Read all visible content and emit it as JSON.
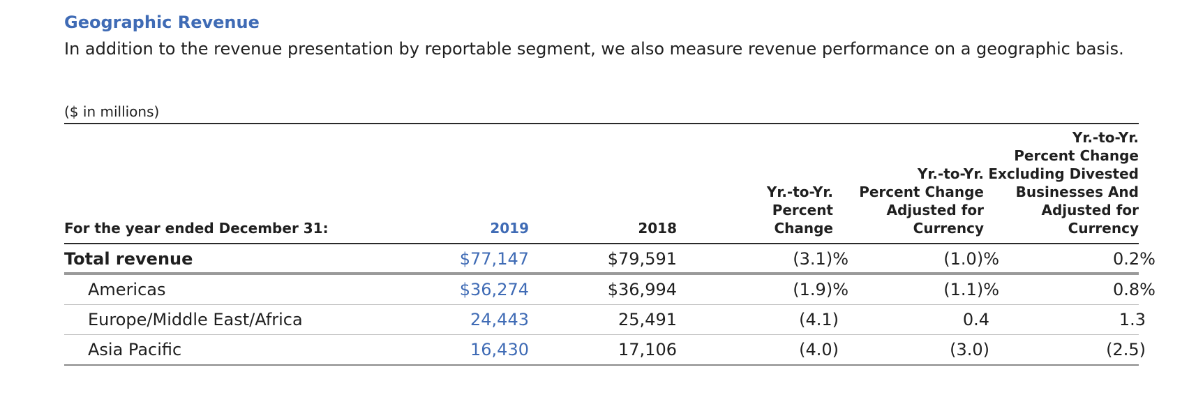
{
  "section": {
    "title": "Geographic Revenue",
    "subtitle": "In addition to the revenue presentation by reportable segment, we also measure revenue performance on a geographic basis.",
    "units": "($ in millions)"
  },
  "table": {
    "headers": {
      "label": "For the year ended December 31:",
      "y2019": "2019",
      "y2018": "2018",
      "yoy_line1": "Yr.-to-Yr.",
      "yoy_line2": "Percent",
      "yoy_line3": "Change",
      "adj_line1": "Yr.-to-Yr.",
      "adj_line2": "Percent Change",
      "adj_line3": "Adjusted for",
      "adj_line4": "Currency",
      "exdiv_line1": "Yr.-to-Yr.",
      "exdiv_line2": "Percent Change",
      "exdiv_line3": "Excluding Divested",
      "exdiv_line4": "Businesses And",
      "exdiv_line5": "Adjusted for",
      "exdiv_line6": "Currency"
    },
    "rows": [
      {
        "label": "Total revenue",
        "y2019": "$77,147",
        "y2018": "$79,591",
        "yoy": "(3.1)%",
        "adj": "(1.0)%",
        "exdiv": "0.2%"
      },
      {
        "label": "Americas",
        "y2019": "$36,274",
        "y2018": "$36,994",
        "yoy": "(1.9)%",
        "adj": "(1.1)%",
        "exdiv": "0.8%"
      },
      {
        "label": "Europe/Middle East/Africa",
        "y2019": "24,443",
        "y2018": "25,491",
        "yoy": "(4.1)",
        "adj": "0.4",
        "exdiv": "1.3"
      },
      {
        "label": "Asia Pacific",
        "y2019": "16,430",
        "y2018": "17,106",
        "yoy": "(4.0)",
        "adj": "(3.0)",
        "exdiv": "(2.5)"
      }
    ]
  },
  "colors": {
    "accent": "#3f6bb5",
    "text": "#1f1f1f"
  }
}
